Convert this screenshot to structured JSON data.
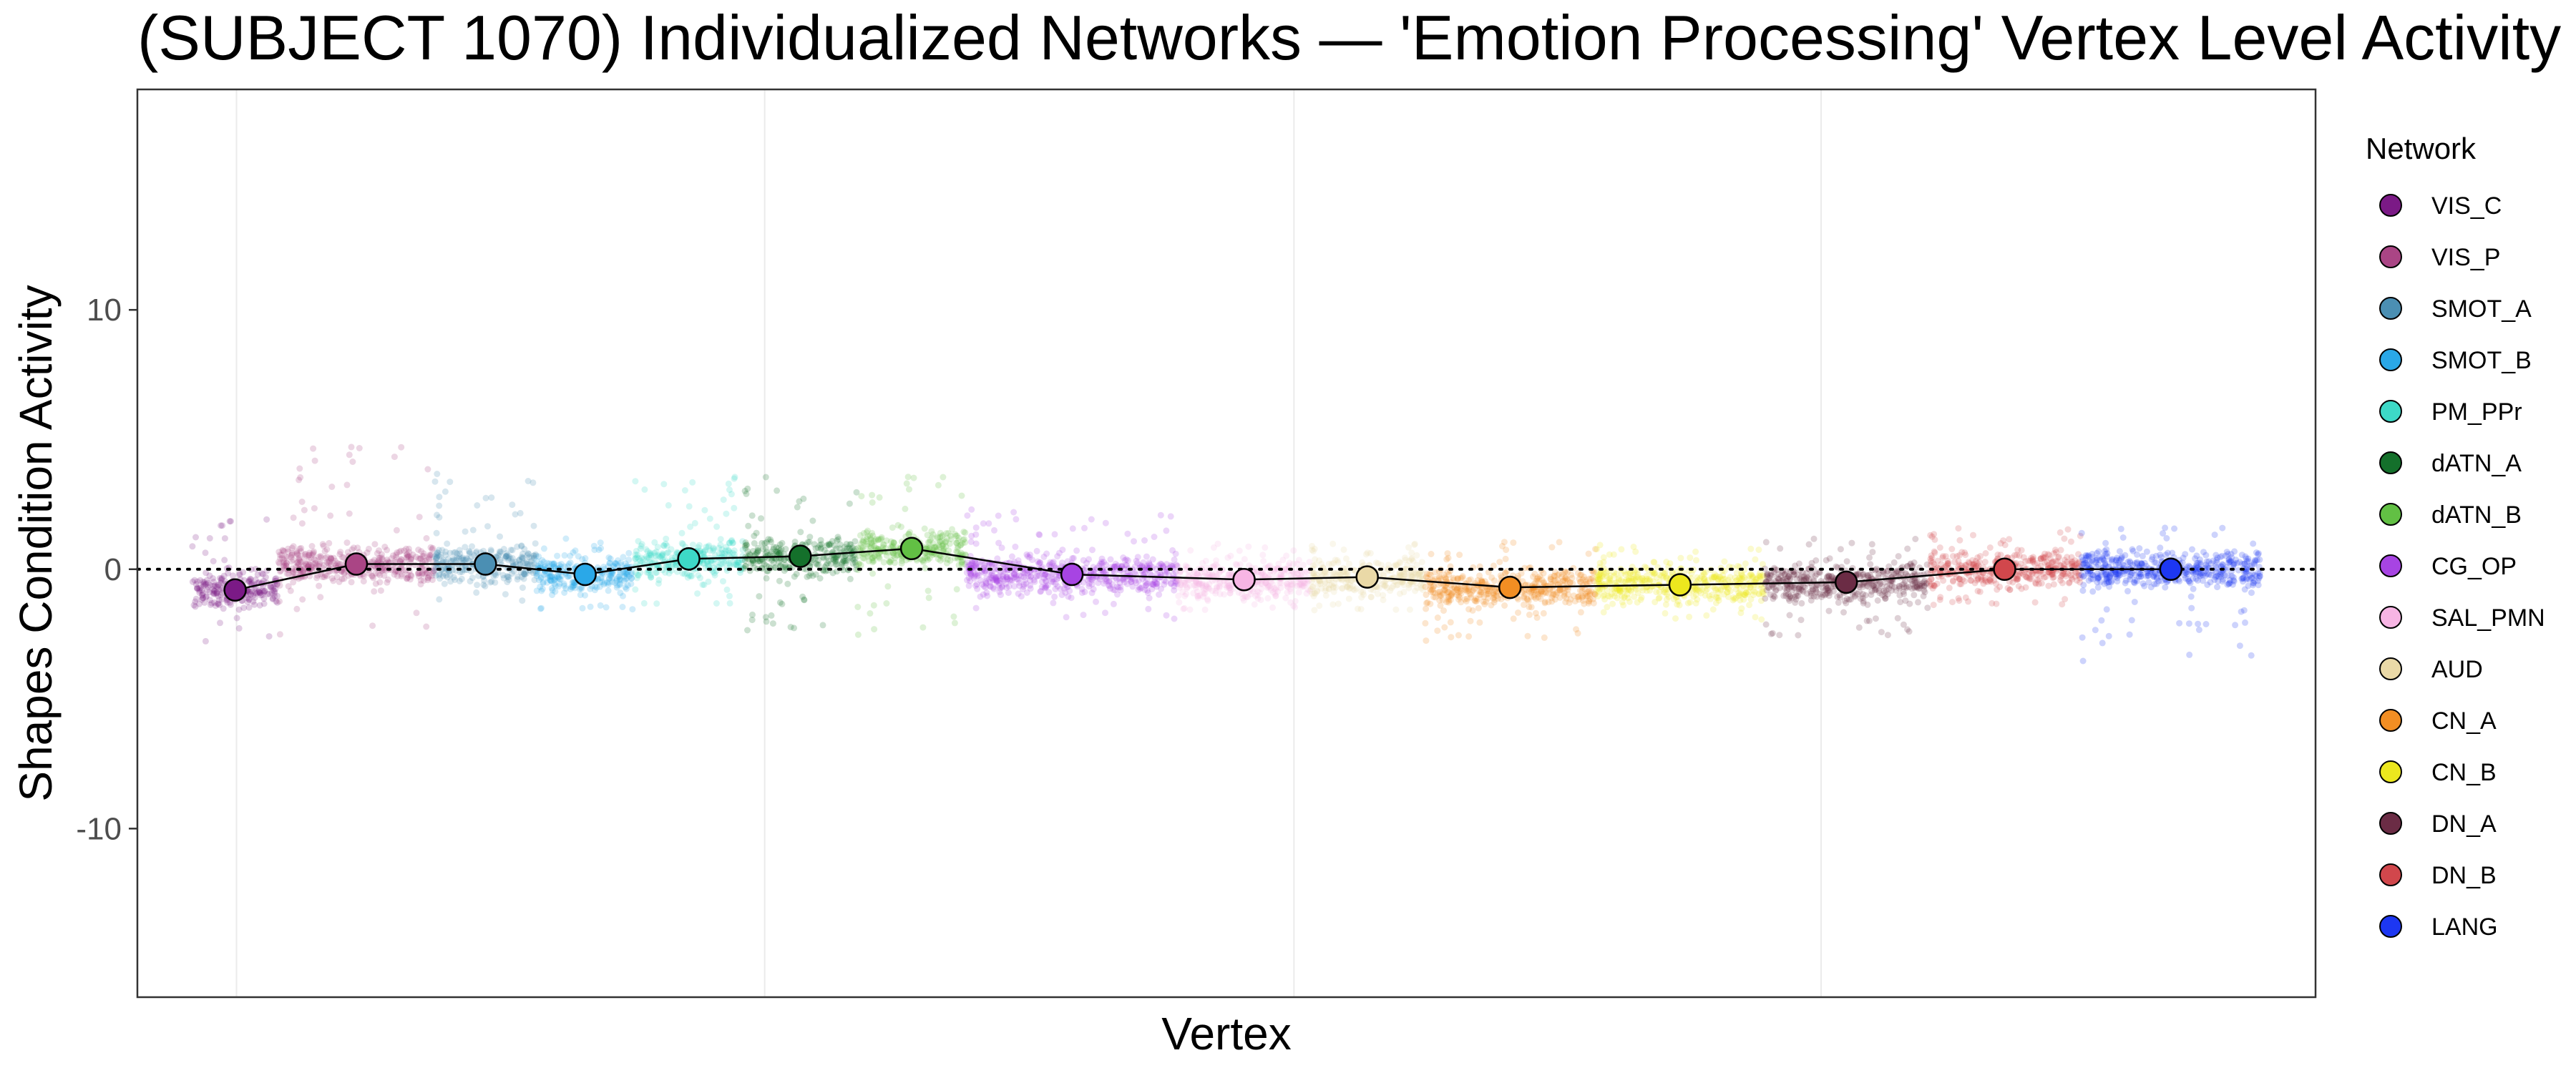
{
  "chart_data": {
    "type": "scatter",
    "title": "(SUBJECT 1070) Individualized Networks — 'Emotion Processing' Vertex Level Activity",
    "xlabel": "Vertex",
    "ylabel": "Shapes Condition Activity",
    "ylim": [
      -16.5,
      18.5
    ],
    "yticks": [
      -10,
      0,
      10
    ],
    "xticks": [],
    "grid": true,
    "legend": {
      "title": "Network",
      "placement": "right"
    },
    "reference_line": {
      "y": 0,
      "style": "dotted"
    },
    "series": [
      {
        "name": "VIS_C",
        "color": "#7B1A86",
        "vertex_start": 0,
        "vertex_end": 2200,
        "mean": -0.8,
        "spread_low": -3.0,
        "spread_high": 2.0
      },
      {
        "name": "VIS_P",
        "color": "#AA4585",
        "vertex_start": 2200,
        "vertex_end": 6200,
        "mean": 0.2,
        "spread_low": -2.6,
        "spread_high": 5.0
      },
      {
        "name": "SMOT_A",
        "color": "#4B8FB3",
        "vertex_start": 6200,
        "vertex_end": 8800,
        "mean": 0.2,
        "spread_low": -1.8,
        "spread_high": 3.8
      },
      {
        "name": "SMOT_B",
        "color": "#2AA8E8",
        "vertex_start": 8800,
        "vertex_end": 11300,
        "mean": -0.2,
        "spread_low": -1.6,
        "spread_high": 1.2
      },
      {
        "name": "PM_PPr",
        "color": "#3DD9C7",
        "vertex_start": 11300,
        "vertex_end": 14100,
        "mean": 0.4,
        "spread_low": -1.4,
        "spread_high": 3.6
      },
      {
        "name": "dATN_A",
        "color": "#14702B",
        "vertex_start": 14100,
        "vertex_end": 17000,
        "mean": 0.5,
        "spread_low": -2.4,
        "spread_high": 3.6
      },
      {
        "name": "dATN_B",
        "color": "#62C044",
        "vertex_start": 17000,
        "vertex_end": 19800,
        "mean": 0.8,
        "spread_low": -2.6,
        "spread_high": 3.8
      },
      {
        "name": "CG_OP",
        "color": "#A744E3",
        "vertex_start": 19800,
        "vertex_end": 25200,
        "mean": -0.2,
        "spread_low": -2.0,
        "spread_high": 2.4
      },
      {
        "name": "SAL_PMN",
        "color": "#F7B5E4",
        "vertex_start": 25200,
        "vertex_end": 28600,
        "mean": -0.4,
        "spread_low": -1.6,
        "spread_high": 1.0
      },
      {
        "name": "AUD",
        "color": "#EAD9A7",
        "vertex_start": 28600,
        "vertex_end": 31500,
        "mean": -0.3,
        "spread_low": -1.6,
        "spread_high": 1.0
      },
      {
        "name": "CN_A",
        "color": "#F28E23",
        "vertex_start": 31500,
        "vertex_end": 35900,
        "mean": -0.7,
        "spread_low": -2.8,
        "spread_high": 1.2
      },
      {
        "name": "CN_B",
        "color": "#ECE71E",
        "vertex_start": 35900,
        "vertex_end": 40200,
        "mean": -0.6,
        "spread_low": -2.0,
        "spread_high": 1.0
      },
      {
        "name": "DN_A",
        "color": "#6B2C45",
        "vertex_start": 40200,
        "vertex_end": 44400,
        "mean": -0.5,
        "spread_low": -2.6,
        "spread_high": 1.2
      },
      {
        "name": "DN_B",
        "color": "#D1474C",
        "vertex_start": 44400,
        "vertex_end": 48300,
        "mean": 0.0,
        "spread_low": -1.4,
        "spread_high": 1.6
      },
      {
        "name": "LANG",
        "color": "#1D37F2",
        "vertex_start": 48300,
        "vertex_end": 52900,
        "mean": 0.0,
        "spread_low": -3.6,
        "spread_high": 1.8
      }
    ]
  }
}
